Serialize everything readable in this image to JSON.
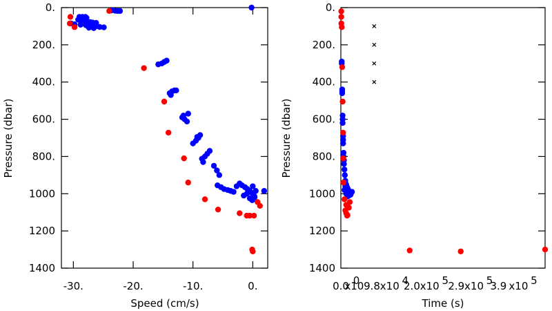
{
  "chart_data": [
    {
      "type": "scatter",
      "xlabel": "Speed (cm/s)",
      "ylabel": "Pressure (dbar)",
      "xlim": [
        -32,
        2.5
      ],
      "ylim": [
        1400,
        0
      ],
      "xticks": [
        {
          "value": -30,
          "label": "-30."
        },
        {
          "value": -20,
          "label": "-20."
        },
        {
          "value": -10,
          "label": "-10."
        },
        {
          "value": 0,
          "label": "0."
        }
      ],
      "yticks": [
        {
          "value": 0,
          "label": "0."
        },
        {
          "value": 200,
          "label": "200."
        },
        {
          "value": 400,
          "label": "400."
        },
        {
          "value": 600,
          "label": "600."
        },
        {
          "value": 800,
          "label": "800."
        },
        {
          "value": 1000,
          "label": "1000"
        },
        {
          "value": 1200,
          "label": "1200"
        },
        {
          "value": 1400,
          "label": "1400"
        }
      ],
      "series": [
        {
          "color": "#0000ff",
          "points": [
            [
              -29.0,
              50
            ],
            [
              -28.5,
              50
            ],
            [
              -28.0,
              50
            ],
            [
              -27.8,
              55
            ],
            [
              -29.2,
              65
            ],
            [
              -28.6,
              70
            ],
            [
              -28.0,
              75
            ],
            [
              -27.2,
              78
            ],
            [
              -26.8,
              80
            ],
            [
              -26.2,
              82
            ],
            [
              -30.4,
              85
            ],
            [
              -29.8,
              90
            ],
            [
              -28.8,
              92
            ],
            [
              -27.9,
              95
            ],
            [
              -27.0,
              100
            ],
            [
              -26.3,
              102
            ],
            [
              -25.6,
              104
            ],
            [
              -24.9,
              106
            ],
            [
              -27.4,
              108
            ],
            [
              -26.6,
              110
            ],
            [
              -23.6,
              15
            ],
            [
              -23.0,
              17
            ],
            [
              -22.6,
              18
            ],
            [
              -22.2,
              18
            ],
            [
              -15.8,
              305
            ],
            [
              -15.2,
              300
            ],
            [
              -14.8,
              292
            ],
            [
              -14.4,
              285
            ],
            [
              -13.9,
              460
            ],
            [
              -13.5,
              450
            ],
            [
              -13.1,
              445
            ],
            [
              -12.8,
              445
            ],
            [
              -13.7,
              470
            ],
            [
              -11.8,
              590
            ],
            [
              -11.4,
              600
            ],
            [
              -11.0,
              612
            ],
            [
              -11.6,
              580
            ],
            [
              -10.8,
              570
            ],
            [
              -10.0,
              730
            ],
            [
              -9.5,
              715
            ],
            [
              -9.1,
              700
            ],
            [
              -8.8,
              685
            ],
            [
              -9.3,
              695
            ],
            [
              -8.5,
              812
            ],
            [
              -8.0,
              800
            ],
            [
              -7.6,
              785
            ],
            [
              -7.2,
              770
            ],
            [
              -8.3,
              830
            ],
            [
              -6.5,
              850
            ],
            [
              -6.0,
              875
            ],
            [
              -5.6,
              900
            ],
            [
              -5.9,
              955
            ],
            [
              -5.3,
              965
            ],
            [
              -4.8,
              975
            ],
            [
              -4.2,
              980
            ],
            [
              -3.7,
              985
            ],
            [
              -3.2,
              990
            ],
            [
              -2.7,
              960
            ],
            [
              -2.2,
              945
            ],
            [
              -1.8,
              955
            ],
            [
              -1.3,
              965
            ],
            [
              -0.9,
              975
            ],
            [
              -0.5,
              985
            ],
            [
              -0.2,
              995
            ],
            [
              0.1,
              1005
            ],
            [
              0.3,
              1015
            ],
            [
              0.5,
              985
            ],
            [
              -0.5,
              1025
            ],
            [
              -0.1,
              1035
            ],
            [
              0.3,
              1020
            ],
            [
              -1.0,
              1000
            ],
            [
              -0.7,
              990
            ],
            [
              0.0,
              960
            ],
            [
              -1.5,
              1010
            ],
            [
              1.9,
              985
            ],
            [
              -0.2,
              0
            ]
          ]
        },
        {
          "color": "#ff0000",
          "points": [
            [
              -30.5,
              50
            ],
            [
              -30.6,
              85
            ],
            [
              -29.8,
              105
            ],
            [
              -24.0,
              18
            ],
            [
              -18.2,
              325
            ],
            [
              -14.8,
              505
            ],
            [
              -14.1,
              672
            ],
            [
              -11.5,
              810
            ],
            [
              -10.8,
              940
            ],
            [
              -8.0,
              1030
            ],
            [
              -5.8,
              1085
            ],
            [
              -2.2,
              1105
            ],
            [
              -1.0,
              1118
            ],
            [
              -0.5,
              1118
            ],
            [
              0.2,
              1118
            ],
            [
              0.8,
              1045
            ],
            [
              1.2,
              1065
            ],
            [
              -0.1,
              1300
            ],
            [
              0.0,
              1310
            ]
          ]
        }
      ]
    },
    {
      "type": "scatter",
      "xlabel": "Time (s)",
      "ylabel": "Pressure (dbar)",
      "xlim": [
        0,
        4.6
      ],
      "ylim": [
        1400,
        0
      ],
      "xticks": [
        {
          "value": 0.0,
          "label": "0.0"
        },
        {
          "value": 0.3,
          "label": "x10"
        },
        {
          "value": 0.35,
          "label": "0"
        },
        {
          "value": 0.7,
          "label": "9.8"
        },
        {
          "value": 1.1,
          "label": "x10"
        },
        {
          "value": 1.45,
          "label": "4"
        },
        {
          "value": 1.6,
          "label": "2.0"
        },
        {
          "value": 2.0,
          "label": "x10"
        },
        {
          "value": 2.35,
          "label": "5"
        },
        {
          "value": 2.6,
          "label": "2.9"
        },
        {
          "value": 3.0,
          "label": "x10"
        },
        {
          "value": 3.35,
          "label": "5"
        },
        {
          "value": 3.55,
          "label": "3.9"
        },
        {
          "value": 4.0,
          "label": "x10"
        },
        {
          "value": 4.35,
          "label": "5"
        }
      ],
      "yticks": [
        {
          "value": 0,
          "label": "0."
        },
        {
          "value": 200,
          "label": "200."
        },
        {
          "value": 400,
          "label": "400."
        },
        {
          "value": 600,
          "label": "600."
        },
        {
          "value": 800,
          "label": "800."
        },
        {
          "value": 1000,
          "label": "1000"
        },
        {
          "value": 1200,
          "label": "1200"
        },
        {
          "value": 1400,
          "label": "1400"
        }
      ],
      "series": [
        {
          "color": "#0000ff",
          "points": [
            [
              0.02,
              290
            ],
            [
              0.02,
              300
            ],
            [
              0.03,
              440
            ],
            [
              0.03,
              450
            ],
            [
              0.03,
              460
            ],
            [
              0.04,
              580
            ],
            [
              0.04,
              600
            ],
            [
              0.04,
              620
            ],
            [
              0.05,
              690
            ],
            [
              0.05,
              710
            ],
            [
              0.05,
              730
            ],
            [
              0.06,
              780
            ],
            [
              0.06,
              800
            ],
            [
              0.07,
              820
            ],
            [
              0.07,
              840
            ],
            [
              0.08,
              870
            ],
            [
              0.09,
              900
            ],
            [
              0.1,
              930
            ],
            [
              0.12,
              950
            ],
            [
              0.14,
              965
            ],
            [
              0.16,
              975
            ],
            [
              0.18,
              985
            ],
            [
              0.2,
              995
            ],
            [
              0.22,
              1005
            ],
            [
              0.15,
              1015
            ],
            [
              0.12,
              1000
            ],
            [
              0.25,
              990
            ],
            [
              0.1,
              960
            ],
            [
              0.18,
              1010
            ],
            [
              0.08,
              980
            ]
          ]
        },
        {
          "color": "#ff0000",
          "points": [
            [
              0.01,
              20
            ],
            [
              0.01,
              50
            ],
            [
              0.01,
              85
            ],
            [
              0.02,
              105
            ],
            [
              0.03,
              320
            ],
            [
              0.04,
              505
            ],
            [
              0.05,
              672
            ],
            [
              0.05,
              810
            ],
            [
              0.06,
              940
            ],
            [
              0.08,
              1030
            ],
            [
              0.12,
              1060
            ],
            [
              0.2,
              1045
            ],
            [
              0.18,
              1075
            ],
            [
              0.1,
              1090
            ],
            [
              0.12,
              1105
            ],
            [
              0.14,
              1118
            ],
            [
              0.15,
              1115
            ],
            [
              1.55,
              1305
            ],
            [
              2.7,
              1310
            ],
            [
              4.6,
              1300
            ]
          ]
        },
        {
          "color": "#000000",
          "marker": "x",
          "points": [
            [
              0.75,
              100
            ],
            [
              0.75,
              200
            ],
            [
              0.75,
              300
            ],
            [
              0.75,
              400
            ]
          ]
        }
      ]
    }
  ]
}
